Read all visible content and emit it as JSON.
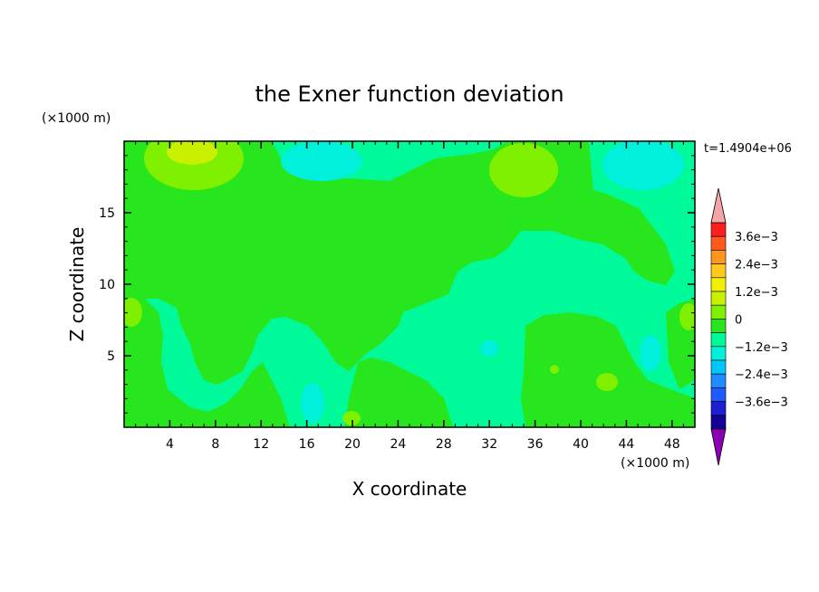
{
  "chart_data": {
    "type": "heatmap",
    "title": "the Exner function deviation",
    "xlabel": "X coordinate",
    "ylabel": "Z coordinate",
    "x_unit": "(×1000 m)",
    "y_unit": "(×1000 m)",
    "time_label": "t=1.4904e+06",
    "xlim": [
      0,
      50
    ],
    "ylim": [
      0,
      20
    ],
    "x_ticks": [
      4,
      8,
      12,
      16,
      20,
      24,
      28,
      32,
      36,
      40,
      44,
      48
    ],
    "y_ticks": [
      5,
      10,
      15
    ],
    "colorbar": {
      "levels": [
        -0.0042,
        -0.0036,
        -0.003,
        -0.0024,
        -0.0018,
        -0.0012,
        -0.0006,
        0,
        0.0006,
        0.0012,
        0.0018,
        0.0024,
        0.003,
        0.0036,
        0.0042
      ],
      "labels": [
        "3.6e−3",
        "2.4e−3",
        "1.2e−3",
        "0",
        "−1.2e−3",
        "−2.4e−3",
        "−3.6e−3"
      ],
      "colors_top_to_bottom": [
        "#ff1e1e",
        "#ff5a1e",
        "#ff961e",
        "#ffc81e",
        "#f0f000",
        "#c8f000",
        "#7ff000",
        "#28e61e",
        "#00fa9a",
        "#00f0dc",
        "#00c8ff",
        "#1e8cff",
        "#1e5aff",
        "#1e1ed2",
        "#140096"
      ],
      "over_color": "#f4a6a6",
      "under_color": "#8c00b4"
    },
    "field_colors": {
      "base": "#00fa9a",
      "positive_small": "#28e61e",
      "positive_mid": "#7ff000",
      "positive_high": "#c8f000",
      "negative_small": "#00f0dc"
    }
  }
}
